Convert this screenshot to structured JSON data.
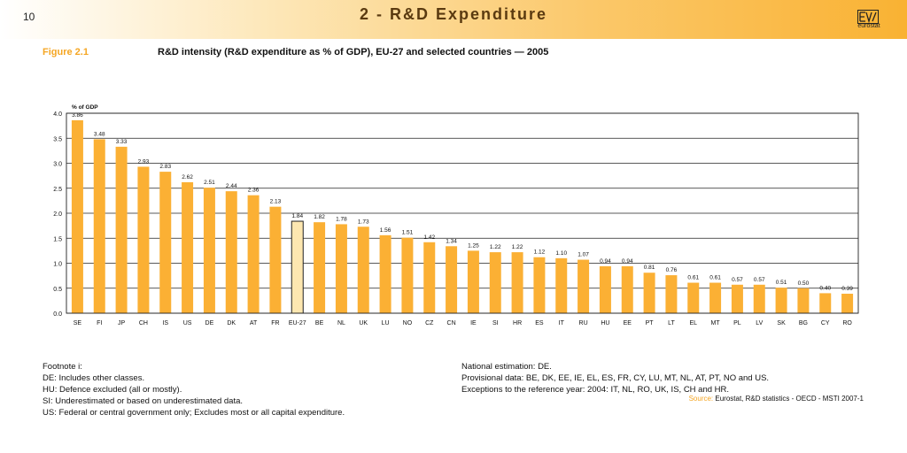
{
  "header": {
    "page_number": "10",
    "chapter_title": "2 - R&D Expenditure",
    "logo_text": "eurostat"
  },
  "figure": {
    "label": "Figure 2.1",
    "title": "R&D intensity (R&D expenditure as % of GDP), EU-27 and selected countries — 2005"
  },
  "chart_data": {
    "type": "bar",
    "title": "R&D intensity (R&D expenditure as % of GDP), EU-27 and selected countries — 2005",
    "ylabel": "% of GDP",
    "xlabel": "",
    "ylim": [
      0,
      4
    ],
    "yticks": [
      "0.0",
      "0.5",
      "1.0",
      "1.5",
      "2.0",
      "2.5",
      "3.0",
      "3.5",
      "4.0"
    ],
    "grid": true,
    "categories": [
      "SE",
      "FI",
      "JP",
      "CH",
      "IS",
      "US",
      "DE",
      "DK",
      "AT",
      "FR",
      "EU-27",
      "BE",
      "NL",
      "UK",
      "LU",
      "NO",
      "CZ",
      "CN",
      "IE",
      "SI",
      "HR",
      "ES",
      "IT",
      "RU",
      "HU",
      "EE",
      "PT",
      "LT",
      "EL",
      "MT",
      "PL",
      "LV",
      "SK",
      "BG",
      "CY",
      "RO"
    ],
    "values": [
      3.86,
      3.48,
      3.33,
      2.93,
      2.83,
      2.62,
      2.51,
      2.44,
      2.36,
      2.13,
      1.84,
      1.82,
      1.78,
      1.73,
      1.56,
      1.51,
      1.42,
      1.34,
      1.25,
      1.22,
      1.22,
      1.12,
      1.1,
      1.07,
      0.94,
      0.94,
      0.81,
      0.76,
      0.61,
      0.61,
      0.57,
      0.57,
      0.51,
      0.5,
      0.4,
      0.39
    ],
    "value_labels": [
      "3.86",
      "3.48",
      "3.33",
      "2.93",
      "2.83",
      "2.62",
      "2.51",
      "2.44",
      "2.36",
      "2.13",
      "1.84",
      "1.82",
      "1.78",
      "1.73",
      "1.56",
      "1.51",
      "1.42",
      "1.34",
      "1.25",
      "1.22",
      "1.22",
      "1.12",
      "1.10",
      "1.07",
      "0.94",
      "0.94",
      "0.81",
      "0.76",
      "0.61",
      "0.61",
      "0.57",
      "0.57",
      "0.51",
      "0.50",
      "0.40",
      "0.39"
    ],
    "highlight_category": "EU-27",
    "colors": {
      "bar": "#fbb034",
      "highlight": "#fde7b0",
      "highlight_border": "#222222"
    }
  },
  "footnotes": {
    "left": [
      "Footnote i:",
      "DE: Includes other classes.",
      "HU: Defence excluded (all or mostly).",
      "SI: Underestimated or based on underestimated data.",
      "US: Federal or central government only; Excludes most or all capital expenditure."
    ],
    "right": [
      "National estimation: DE.",
      "Provisional data: BE, DK, EE, IE, EL, ES, FR, CY, LU, MT, NL, AT, PT, NO and US.",
      "Exceptions to the reference year: 2004: IT, NL, RO, UK, IS, CH and HR."
    ],
    "source_label": "Source:",
    "source_text": "Eurostat, R&D statistics - OECD - MSTI 2007-1"
  }
}
